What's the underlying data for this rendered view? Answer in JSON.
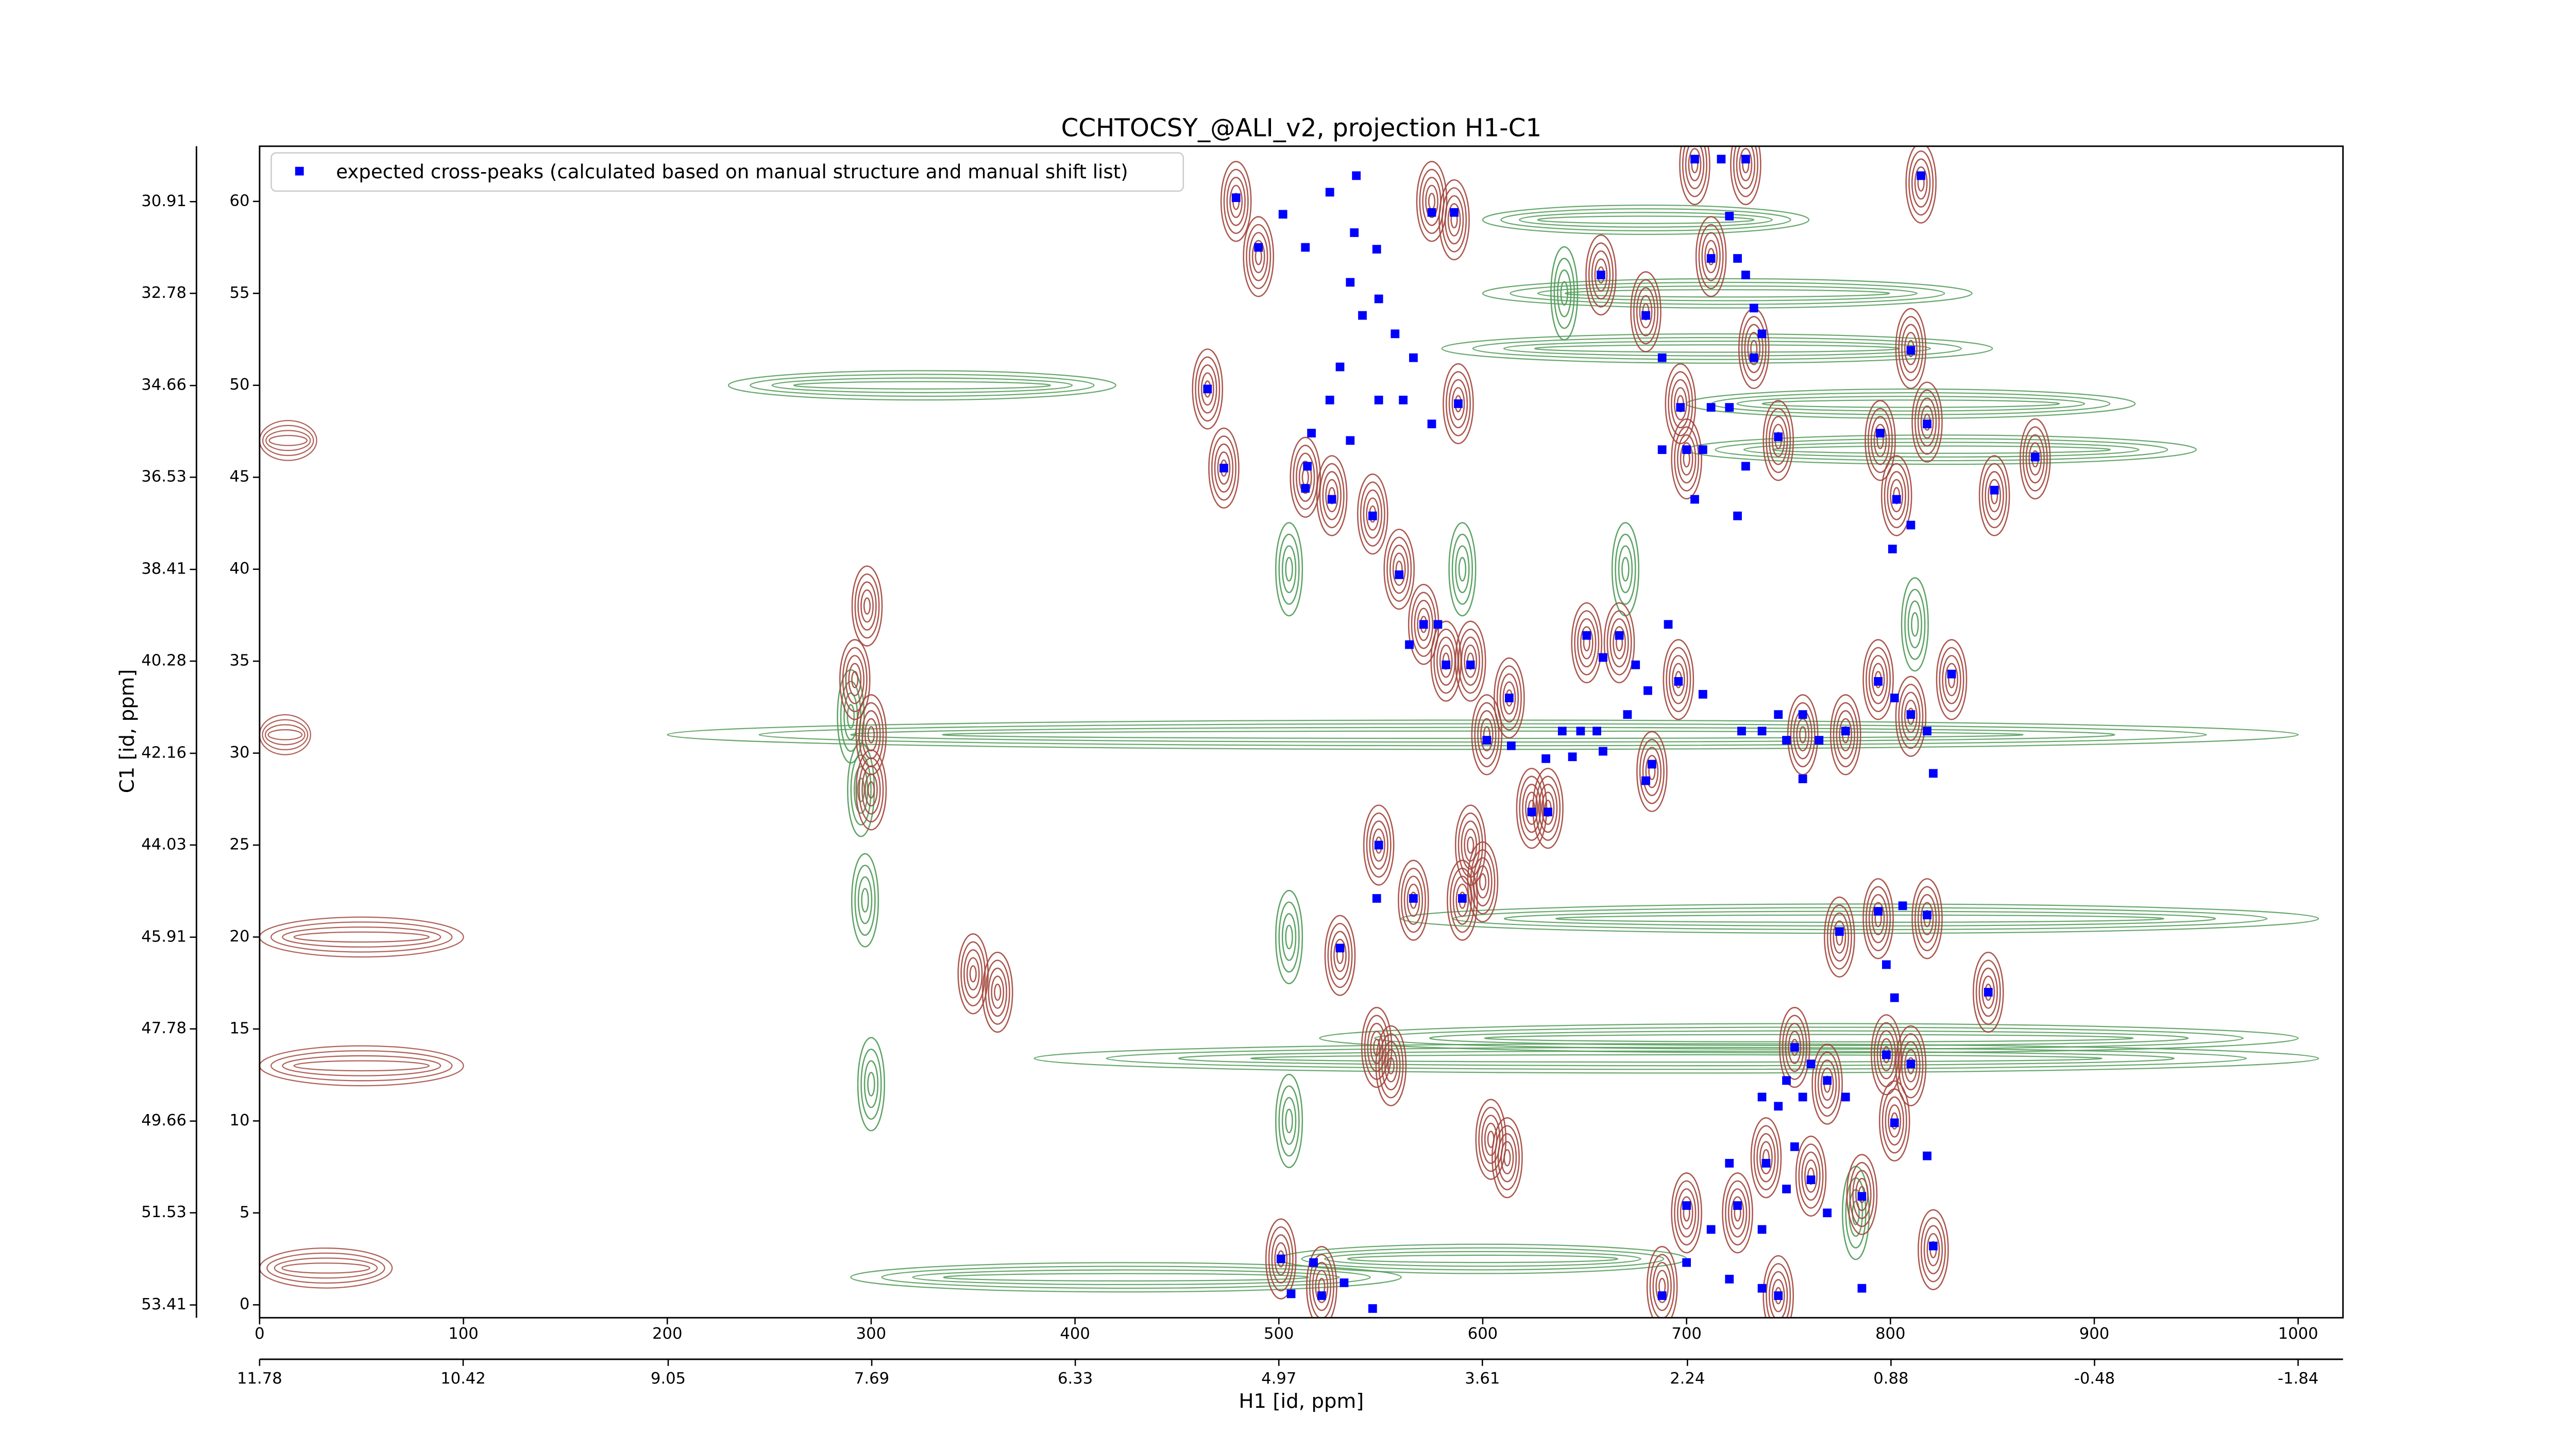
{
  "chart_data": {
    "type": "scatter",
    "title": "CCHTOCSY_@ALI_v2, projection H1-C1",
    "x_label": "H1 [id, ppm]",
    "y_label": "C1 [id, ppm]",
    "xlim": [
      0,
      1022
    ],
    "xticks": [
      0,
      100,
      200,
      300,
      400,
      500,
      600,
      700,
      800,
      900,
      1000
    ],
    "ylim": [
      -0.7,
      63
    ],
    "yticks": [
      0,
      5,
      10,
      15,
      20,
      25,
      30,
      35,
      40,
      45,
      50,
      55,
      60
    ],
    "x2lim": [
      11.78,
      -2.14
    ],
    "x2ticks": [
      11.78,
      10.42,
      9.05,
      7.69,
      6.33,
      4.97,
      3.61,
      2.24,
      0.88,
      -0.48,
      -1.84
    ],
    "y2lim": [
      53.67,
      29.78
    ],
    "y2ticks": [
      30.91,
      32.78,
      34.66,
      36.53,
      38.41,
      40.28,
      42.16,
      44.03,
      45.91,
      47.78,
      49.66,
      51.53,
      53.41
    ],
    "legend": "upper left",
    "series": [
      {
        "name": "expected cross-peaks (calculated based on manual structure and manual shift list)",
        "color": "#0000ff",
        "x": [
          479,
          490,
          502,
          513,
          525,
          538,
          537,
          548,
          535,
          541,
          549,
          557,
          566,
          530,
          549,
          561,
          575,
          525,
          516,
          514,
          513,
          526,
          575,
          586,
          588,
          465,
          473,
          535,
          546,
          559,
          571,
          578,
          564,
          582,
          594,
          602,
          613,
          614,
          631,
          624,
          632,
          639,
          648,
          656,
          651,
          659,
          667,
          675,
          681,
          671,
          659,
          644,
          683,
          696,
          691,
          680,
          708,
          658,
          680,
          688,
          697,
          688,
          700,
          708,
          712,
          721,
          725,
          729,
          733,
          737,
          733,
          721,
          712,
          729,
          745,
          704,
          717,
          729,
          704,
          725,
          727,
          737,
          745,
          749,
          757,
          765,
          778,
          757,
          794,
          802,
          810,
          818,
          821,
          830,
          795,
          803,
          810,
          818,
          815,
          810,
          801,
          851,
          871,
          549,
          548,
          566,
          590,
          530,
          775,
          794,
          806,
          818,
          798,
          802,
          848,
          753,
          761,
          749,
          769,
          737,
          745,
          757,
          778,
          798,
          810,
          802,
          818,
          753,
          739,
          749,
          761,
          769,
          786,
          721,
          700,
          712,
          725,
          737,
          821,
          700,
          721,
          737,
          745,
          688,
          786,
          501,
          517,
          506,
          521,
          532,
          546
        ],
        "values": [
          60.2,
          57.5,
          59.3,
          57.5,
          60.5,
          61.4,
          58.3,
          57.4,
          55.6,
          53.8,
          54.7,
          52.8,
          51.5,
          51.0,
          49.2,
          49.2,
          47.9,
          49.2,
          47.4,
          45.6,
          44.4,
          43.8,
          59.4,
          59.4,
          49.0,
          49.8,
          45.5,
          47.0,
          42.9,
          39.7,
          37.0,
          37.0,
          35.9,
          34.8,
          34.8,
          30.7,
          33.0,
          30.4,
          29.7,
          26.8,
          26.8,
          31.2,
          31.2,
          31.2,
          36.4,
          35.2,
          36.4,
          34.8,
          33.4,
          32.1,
          30.1,
          29.8,
          29.4,
          33.9,
          37.0,
          28.5,
          33.2,
          56.0,
          53.8,
          51.5,
          48.8,
          46.5,
          46.5,
          46.5,
          56.9,
          59.2,
          56.9,
          56.0,
          54.2,
          52.8,
          51.5,
          48.8,
          48.8,
          45.6,
          47.2,
          62.3,
          62.3,
          62.3,
          43.8,
          42.9,
          31.2,
          31.2,
          32.1,
          30.7,
          32.1,
          30.7,
          31.2,
          28.6,
          33.9,
          33.0,
          32.1,
          31.2,
          28.9,
          34.3,
          47.4,
          43.8,
          42.4,
          47.9,
          61.4,
          51.9,
          41.1,
          44.3,
          46.1,
          25.0,
          22.1,
          22.1,
          22.1,
          19.4,
          20.3,
          21.4,
          21.7,
          21.2,
          18.5,
          16.7,
          17.0,
          14.0,
          13.1,
          12.2,
          12.2,
          11.3,
          10.8,
          11.3,
          11.3,
          13.6,
          13.1,
          9.9,
          8.1,
          8.6,
          7.7,
          6.3,
          6.8,
          5.0,
          5.9,
          7.7,
          5.4,
          4.1,
          5.4,
          4.1,
          3.2,
          2.3,
          1.4,
          0.9,
          0.5,
          0.5,
          0.9,
          2.5,
          2.3,
          0.6,
          0.5,
          1.2,
          -0.2
        ]
      }
    ],
    "positive_contours": {
      "color": "#a3463c",
      "x": [
        465,
        473,
        479,
        490,
        513,
        526,
        546,
        559,
        571,
        582,
        594,
        602,
        613,
        624,
        632,
        651,
        667,
        683,
        696,
        549,
        566,
        590,
        530,
        575,
        586,
        588,
        658,
        680,
        697,
        700,
        712,
        733,
        745,
        704,
        729,
        757,
        778,
        794,
        810,
        830,
        795,
        803,
        818,
        815,
        810,
        851,
        871,
        775,
        794,
        818,
        848,
        753,
        769,
        798,
        810,
        802,
        739,
        761,
        786,
        700,
        725,
        821,
        688,
        745,
        501,
        521,
        548,
        555,
        604,
        612,
        350,
        362,
        292,
        300,
        300,
        298,
        594,
        600
      ],
      "y": [
        49.8,
        45.5,
        60,
        57,
        45,
        44,
        43,
        40,
        37,
        35,
        35,
        31,
        33,
        27,
        27,
        36,
        36,
        29,
        34,
        25,
        22,
        22,
        19,
        60,
        59,
        49,
        56,
        54,
        49,
        46,
        57,
        52,
        47,
        62,
        62,
        31,
        31,
        34,
        32,
        34,
        47,
        44,
        48,
        61,
        52,
        44,
        46,
        20,
        21,
        21,
        17,
        14,
        12,
        13.6,
        13,
        10,
        8,
        7,
        6,
        5,
        5,
        3,
        1,
        0.5,
        2.5,
        1,
        14,
        13,
        9,
        8,
        18,
        17,
        34,
        31,
        28,
        38,
        25,
        23
      ],
      "ridges": {
        "y": [
          20,
          13,
          2,
          31,
          47
        ],
        "x_from": [
          0,
          0,
          0,
          0,
          0
        ],
        "x_to": [
          100,
          100,
          65,
          25,
          28
        ]
      }
    },
    "negative_contours": {
      "color": "#4e9a55",
      "x": [
        290,
        295,
        297,
        300,
        505,
        505,
        505,
        590,
        670,
        640,
        783,
        812
      ],
      "y": [
        32,
        28,
        22,
        12,
        40,
        20,
        10,
        40,
        40,
        55,
        5,
        37
      ],
      "ridges": {
        "y": [
          31,
          21,
          13.4,
          14.5,
          50,
          49,
          46.5,
          55,
          59,
          1.5,
          2.5,
          52
        ],
        "x_from": [
          200,
          560,
          380,
          520,
          230,
          700,
          700,
          600,
          600,
          290,
          500,
          580
        ],
        "x_to": [
          1000,
          1010,
          1010,
          1000,
          420,
          920,
          950,
          840,
          760,
          560,
          700,
          850
        ]
      }
    }
  }
}
